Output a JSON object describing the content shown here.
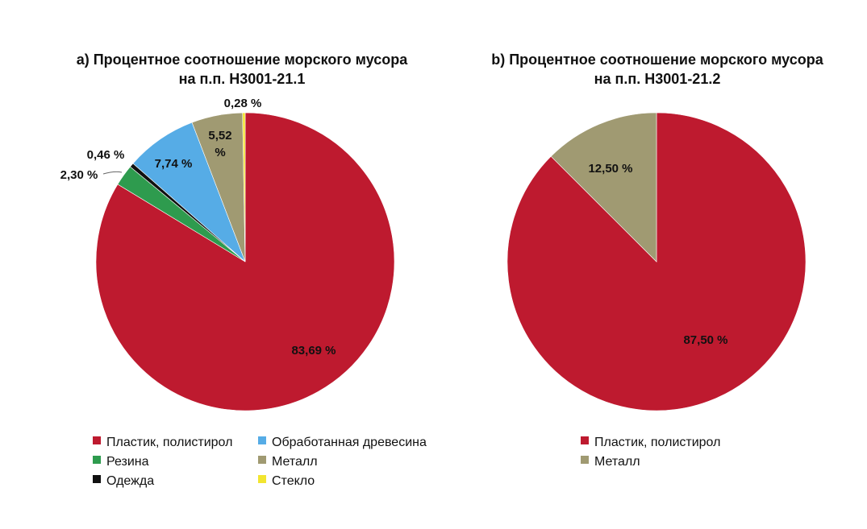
{
  "chart_data": [
    {
      "type": "pie",
      "title_line1": "a) Процентное соотношение морского мусора",
      "title_line2": "на п.п. Н3001-21.1",
      "start_angle_deg": 0,
      "direction": "clockwise",
      "slices": [
        {
          "name": "Пластик, полистирол",
          "value": 83.69,
          "label": "83,69 %",
          "color": "#BE1A2F"
        },
        {
          "name": "Резина",
          "value": 2.3,
          "label": "2,30 %",
          "color": "#2E9B4E"
        },
        {
          "name": "Одежда",
          "value": 0.46,
          "label": "0,46 %",
          "color": "#111111"
        },
        {
          "name": "Обработанная древесина",
          "value": 7.74,
          "label": "7,74 %",
          "color": "#56ACE6"
        },
        {
          "name": "Металл",
          "value": 5.52,
          "label_line1": "5,52",
          "label_line2": "%",
          "color": "#A09A72"
        },
        {
          "name": "Стекло",
          "value": 0.28,
          "label": "0,28 %",
          "color": "#F2E530"
        }
      ],
      "legend": [
        {
          "name": "Пластик, полистирол",
          "color": "#BE1A2F"
        },
        {
          "name": "Обработанная древесина",
          "color": "#56ACE6"
        },
        {
          "name": "Резина",
          "color": "#2E9B4E"
        },
        {
          "name": "Металл",
          "color": "#A09A72"
        },
        {
          "name": "Одежда",
          "color": "#111111"
        },
        {
          "name": "Стекло",
          "color": "#F2E530"
        }
      ],
      "legend_position": "bottom"
    },
    {
      "type": "pie",
      "title_line1": "b) Процентное соотношение морского мусора",
      "title_line2": "на п.п. Н3001-21.2",
      "start_angle_deg": 0,
      "direction": "clockwise",
      "slices": [
        {
          "name": "Пластик, полистирол",
          "value": 87.5,
          "label": "87,50 %",
          "color": "#BE1A2F"
        },
        {
          "name": "Металл",
          "value": 12.5,
          "label": "12,50 %",
          "color": "#A09A72"
        }
      ],
      "legend": [
        {
          "name": "Пластик, полистирол",
          "color": "#BE1A2F"
        },
        {
          "name": "Металл",
          "color": "#A09A72"
        }
      ],
      "legend_position": "bottom"
    }
  ]
}
